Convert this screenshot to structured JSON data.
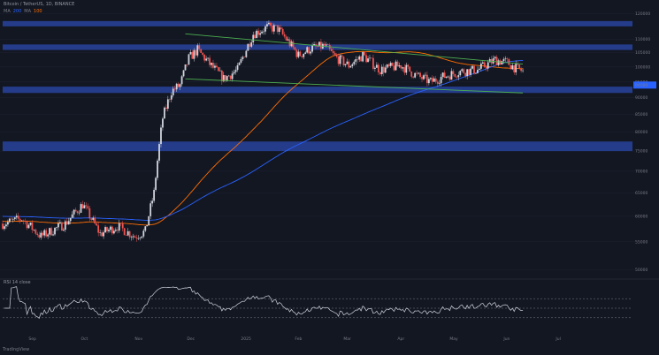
{
  "header": {
    "title": "Bitcoin / TetherUS, 1D, BINANCE",
    "indicators": [
      {
        "label": "MA",
        "value": "200",
        "color": "#2962ff"
      },
      {
        "label": "MA",
        "value": "100",
        "color": "#ff6d00"
      }
    ],
    "rsi_label": "RSI 14 close"
  },
  "footer": {
    "brand": "TradingView"
  },
  "colors": {
    "background": "#131722",
    "up": "#d1d4dc",
    "down": "#ef5350",
    "zone": "#2e54c9",
    "trendline": "#4caf50",
    "ma_fast": "#ff6d00",
    "ma_slow": "#2962ff",
    "rsi": "#d1d4dc",
    "last_price_badge": "#2962ff"
  },
  "chart_data": {
    "type": "candlestick",
    "price_axis": {
      "log_scale": true,
      "ticks": [
        "120000",
        "110000",
        "105000",
        "100000",
        "95000",
        "90000",
        "85000",
        "80000",
        "75000",
        "70000",
        "65000",
        "60000",
        "55000",
        "50000"
      ],
      "last_price": "94000"
    },
    "time_axis": {
      "ticks": [
        "Sep",
        "Oct",
        "Nov",
        "Dec",
        "2025",
        "Feb",
        "Mar",
        "Apr",
        "May",
        "Jun",
        "Jul"
      ]
    },
    "support_resistance_zones": [
      {
        "low": 115000,
        "high": 117000
      },
      {
        "low": 106000,
        "high": 108000
      },
      {
        "low": 91500,
        "high": 93500
      },
      {
        "low": 75000,
        "high": 77500
      }
    ],
    "wedge": {
      "upper": {
        "start": {
          "x": "2024-11-28",
          "y": 112000
        },
        "end": {
          "x": "2025-06-10",
          "y": 101000
        }
      },
      "lower": {
        "start": {
          "x": "2024-11-28",
          "y": 96000
        },
        "end": {
          "x": "2025-06-10",
          "y": 91500
        }
      }
    },
    "series": [
      {
        "name": "MA",
        "period": 100,
        "color": "#ff6d00"
      },
      {
        "name": "MA",
        "period": 200,
        "color": "#2962ff"
      }
    ],
    "rsi": {
      "levels": [
        70,
        50,
        30
      ],
      "range": [
        0,
        100
      ]
    }
  }
}
